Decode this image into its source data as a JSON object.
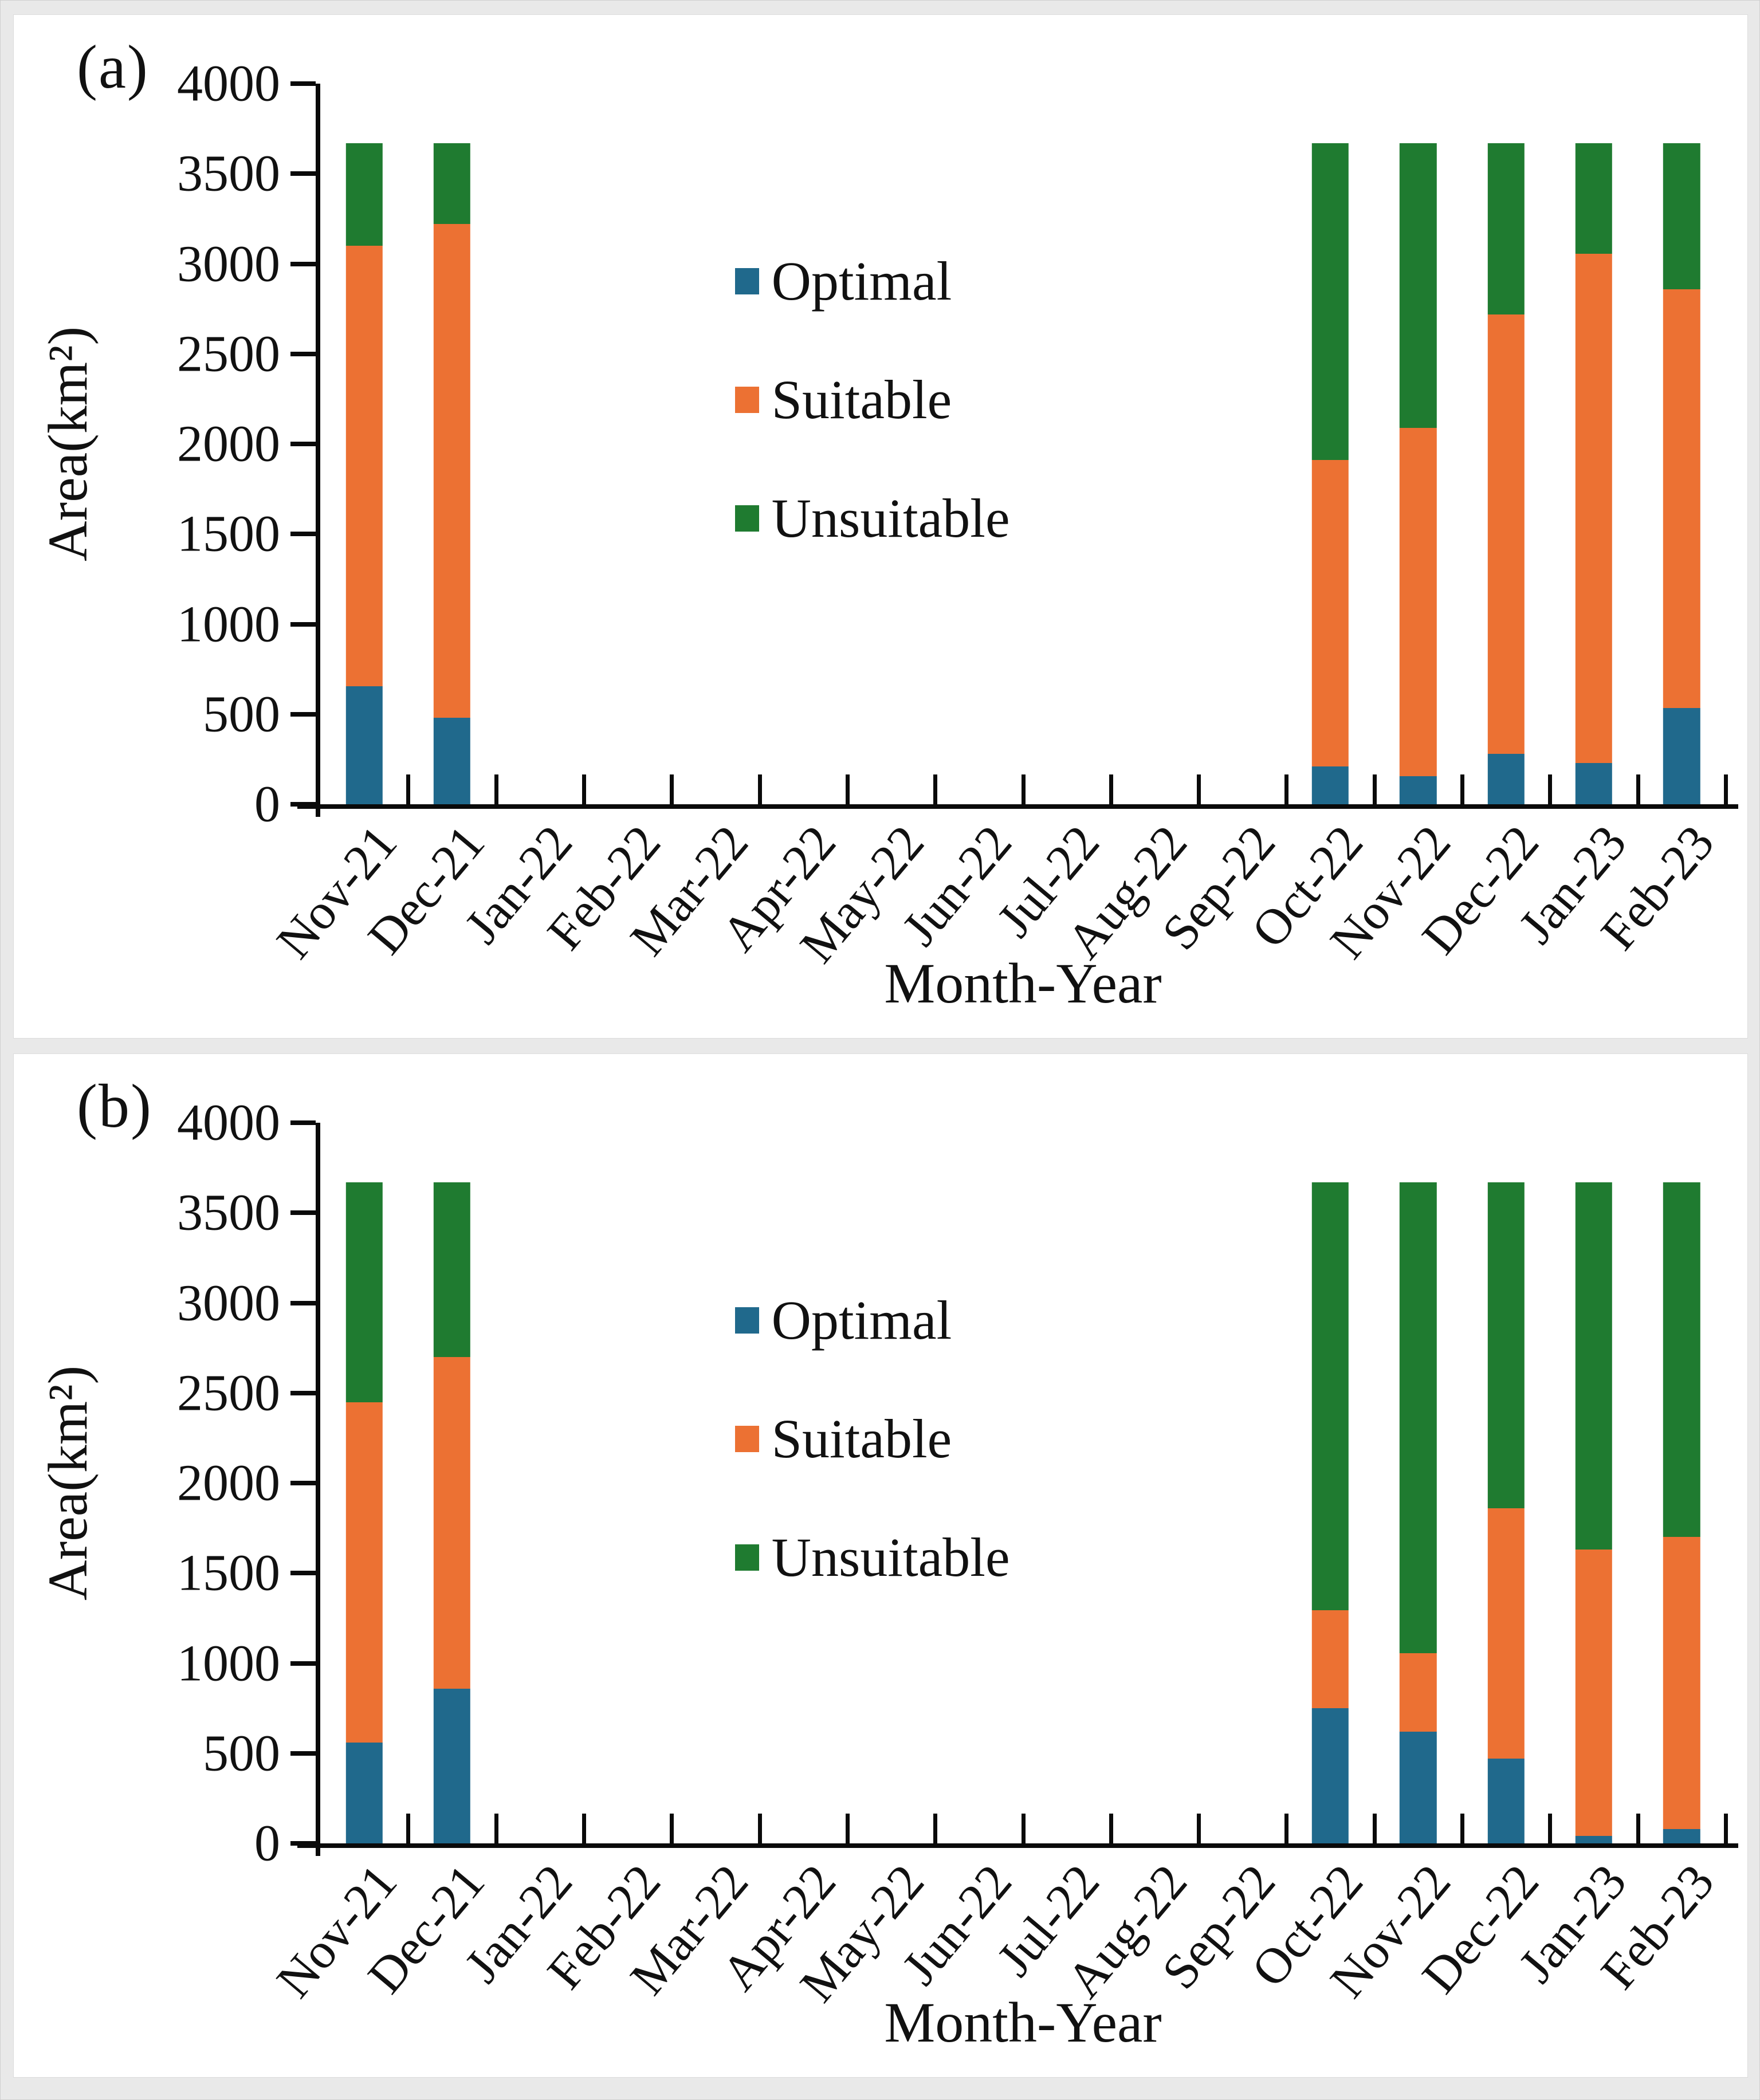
{
  "figure": {
    "background_color": "#e9e9e9",
    "panel_color": "#ffffff",
    "axis_color": "#0a0a0a",
    "text_color": "#111111"
  },
  "chart_data": [
    {
      "id": "a",
      "panel_label": "(a)",
      "type": "bar",
      "stacked": true,
      "xlabel": "Month-Year",
      "ylabel": "Area(km²)",
      "ylim": [
        0,
        4000
      ],
      "ytick_step": 500,
      "grid": false,
      "legend_position": "center-left-inside",
      "legend": [
        "Optimal",
        "Suitable",
        "Unsuitable"
      ],
      "categories": [
        "Nov-21",
        "Dec-21",
        "Jan-22",
        "Feb-22",
        "Mar-22",
        "Apr-22",
        "May-22",
        "Jun-22",
        "Jul-22",
        "Aug-22",
        "Sep-22",
        "Oct-22",
        "Nov-22",
        "Dec-22",
        "Jan-23",
        "Feb-23"
      ],
      "series": [
        {
          "name": "Optimal",
          "color": "#20698C",
          "values": [
            655,
            480,
            0,
            0,
            0,
            0,
            0,
            0,
            0,
            0,
            0,
            210,
            155,
            280,
            230,
            535
          ]
        },
        {
          "name": "Suitable",
          "color": "#EC7133",
          "values": [
            2445,
            2740,
            0,
            0,
            0,
            0,
            0,
            0,
            0,
            0,
            0,
            1700,
            1935,
            2440,
            2825,
            2325
          ]
        },
        {
          "name": "Unsuitable",
          "color": "#1F7B30",
          "values": [
            570,
            450,
            0,
            0,
            0,
            0,
            0,
            0,
            0,
            0,
            0,
            1760,
            1580,
            950,
            615,
            810
          ]
        }
      ]
    },
    {
      "id": "b",
      "panel_label": "(b)",
      "type": "bar",
      "stacked": true,
      "xlabel": "Month-Year",
      "ylabel": "Area(km²)",
      "ylim": [
        0,
        4000
      ],
      "ytick_step": 500,
      "grid": false,
      "legend_position": "center-left-inside",
      "legend": [
        "Optimal",
        "Suitable",
        "Unsuitable"
      ],
      "categories": [
        "Nov-21",
        "Dec-21",
        "Jan-22",
        "Feb-22",
        "Mar-22",
        "Apr-22",
        "May-22",
        "Jun-22",
        "Jul-22",
        "Aug-22",
        "Sep-22",
        "Oct-22",
        "Nov-22",
        "Dec-22",
        "Jan-23",
        "Feb-23"
      ],
      "series": [
        {
          "name": "Optimal",
          "color": "#20698C",
          "values": [
            560,
            860,
            0,
            0,
            0,
            0,
            0,
            0,
            0,
            0,
            0,
            750,
            620,
            470,
            40,
            80
          ]
        },
        {
          "name": "Suitable",
          "color": "#EC7133",
          "values": [
            1890,
            1840,
            0,
            0,
            0,
            0,
            0,
            0,
            0,
            0,
            0,
            545,
            435,
            1390,
            1590,
            1620
          ]
        },
        {
          "name": "Unsuitable",
          "color": "#1F7B30",
          "values": [
            1220,
            970,
            0,
            0,
            0,
            0,
            0,
            0,
            0,
            0,
            0,
            2375,
            2615,
            1810,
            2040,
            1970
          ]
        }
      ]
    }
  ]
}
